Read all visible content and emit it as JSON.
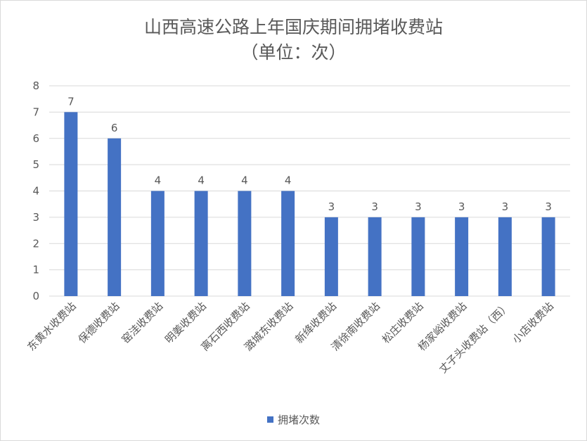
{
  "chart_data": {
    "type": "bar",
    "title": "山西高速公路上年国庆期间拥堵收费站",
    "subtitle": "（单位：次）",
    "categories": [
      "东黄水收费站",
      "保德收费站",
      "窑洼收费站",
      "明姜收费站",
      "离石西收费站",
      "潞城东收费站",
      "新绛收费站",
      "清徐南收费站",
      "松庄收费站",
      "杨家峪收费站",
      "丈子头收费站（西）",
      "小店收费站"
    ],
    "series": [
      {
        "name": "拥堵次数",
        "values": [
          7,
          6,
          4,
          4,
          4,
          4,
          3,
          3,
          3,
          3,
          3,
          3
        ]
      }
    ],
    "y_ticks": [
      "0",
      "1",
      "2",
      "3",
      "4",
      "5",
      "6",
      "7",
      "8"
    ],
    "ylim": [
      0,
      8
    ],
    "grid": true,
    "legend_position": "bottom",
    "bar_color": "#4472c4",
    "grid_color": "#d9d9d9",
    "text_color": "#595959"
  }
}
